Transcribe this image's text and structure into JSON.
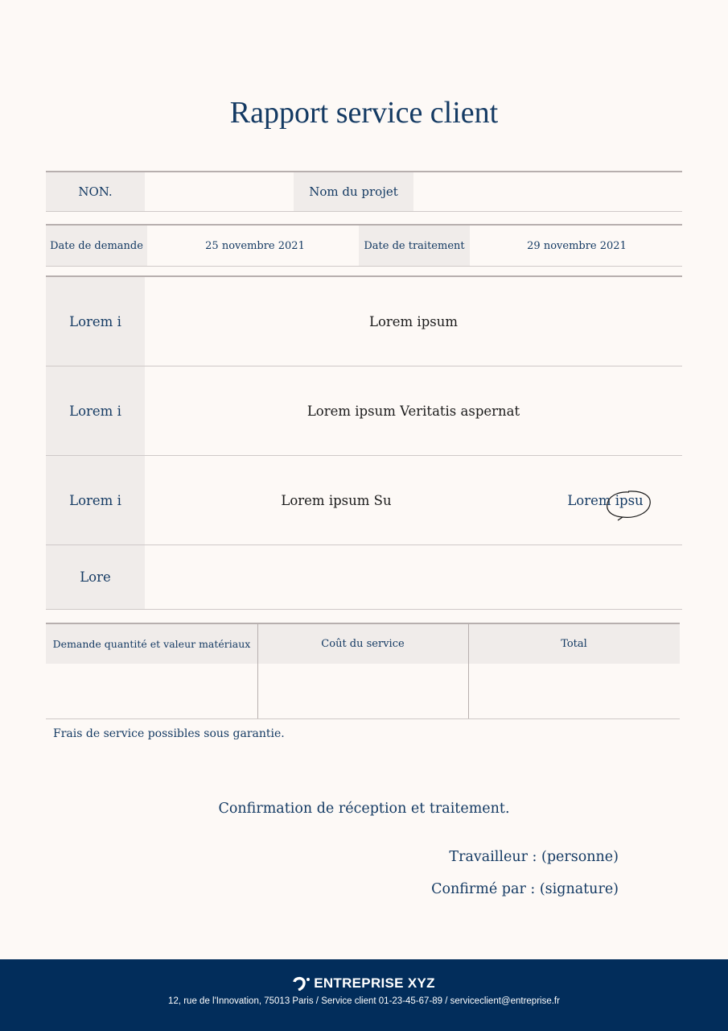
{
  "title": "Rapport service client",
  "header_row": {
    "no_label": "NON.",
    "project_label": "Nom du projet"
  },
  "dates_row": {
    "request_label": "Date de demande",
    "request_value": "25 novembre 2021",
    "processing_label": "Date de traitement",
    "processing_value": "29 novembre 2021"
  },
  "details": [
    {
      "label": "Lorem i",
      "value": "Lorem ipsum"
    },
    {
      "label": "Lorem i",
      "value": "Lorem ipsum Veritatis aspernat"
    },
    {
      "label": "Lorem i",
      "value": "Lorem ipsum Su",
      "extra": "Lorem ipsu"
    },
    {
      "label": "Lore",
      "value": ""
    }
  ],
  "costs": {
    "headers": [
      "Demande quantité et valeur matériaux",
      "Coût du service",
      "Total"
    ],
    "values": [
      "",
      "",
      ""
    ]
  },
  "note": "Frais de service possibles sous garantie.",
  "confirmation": "Confirmation de réception et traitement.",
  "worker": "Travailleur : (personne)",
  "confirmed_by": "Confirmé par : (signature)",
  "footer": {
    "brand": "ENTREPRISE XYZ",
    "address": "12, rue de l'Innovation, 75013 Paris / Service client 01-23-45-67-89 / serviceclient@entreprise.fr"
  },
  "colors": {
    "navy": "#143a63",
    "footer": "#022d5b",
    "shade": "#f0ecea",
    "background": "#fdf9f6"
  }
}
